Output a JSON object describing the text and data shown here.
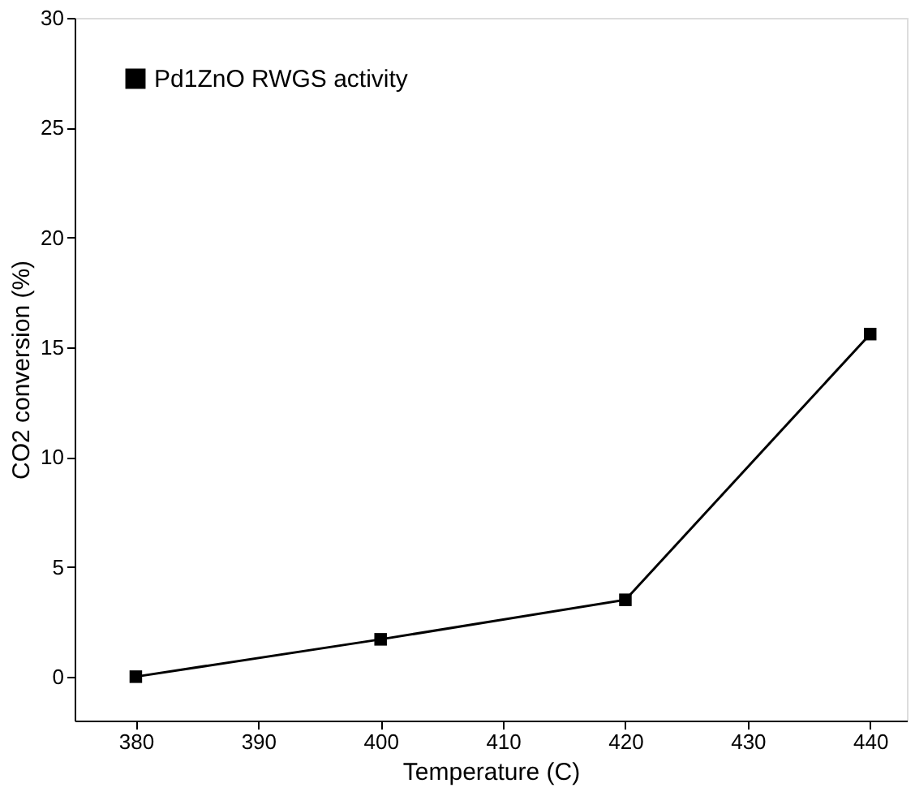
{
  "chart_data": {
    "type": "line",
    "xlabel": "Temperature (C)",
    "ylabel": "CO2 conversion (%)",
    "x": [
      380,
      400,
      420,
      440
    ],
    "series": [
      {
        "name": "Pd1ZnO RWGS activity",
        "color": "#000000",
        "values": [
          0,
          1.7,
          3.5,
          15.6
        ]
      }
    ],
    "xlim": [
      375,
      443
    ],
    "xticks": [
      380,
      390,
      400,
      410,
      420,
      430,
      440
    ],
    "ylim": [
      -2,
      30
    ],
    "yticks": [
      0,
      5,
      10,
      15,
      20,
      25,
      30
    ],
    "grid": false,
    "legend": "top left",
    "marker": "square",
    "line_style": "solid"
  }
}
